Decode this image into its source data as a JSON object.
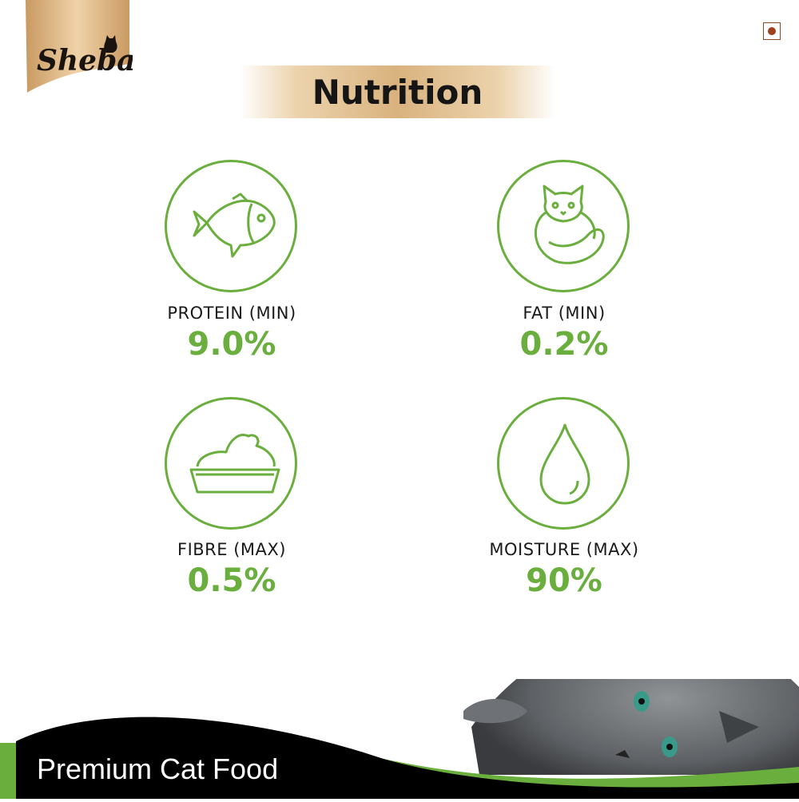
{
  "brand": {
    "logo_text": "Sheba"
  },
  "header": {
    "title": "Nutrition"
  },
  "veg_mark": {
    "color": "#a0401c"
  },
  "accent_color": "#6aae3e",
  "nutrients": [
    {
      "label": "PROTEIN (MIN)",
      "value": "9.0%",
      "icon": "fish-icon"
    },
    {
      "label": "FAT (MIN)",
      "value": "0.2%",
      "icon": "cat-icon"
    },
    {
      "label": "FIBRE (MAX)",
      "value": "0.5%",
      "icon": "food-tray-icon"
    },
    {
      "label": "MOISTURE (MAX)",
      "value": "90%",
      "icon": "water-drop-icon"
    }
  ],
  "footer": {
    "tagline": "Premium Cat Food"
  }
}
